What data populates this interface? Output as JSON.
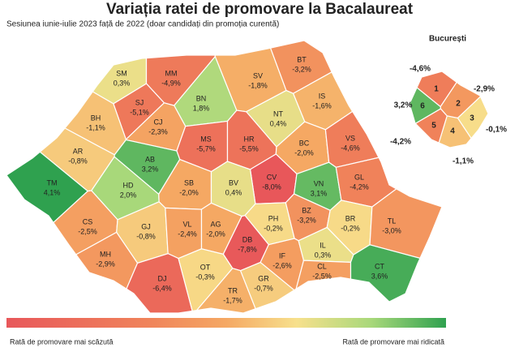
{
  "header": {
    "title": "Variația ratei de promovare la Bacalaureat",
    "subtitle": "Sesiunea iunie-iulie 2023 față de 2022 (doar candidați din promoția curentă)"
  },
  "counties": [
    {
      "code": "SM",
      "value": 0.3,
      "value_label": "0,3%"
    },
    {
      "code": "MM",
      "value": -4.9,
      "value_label": "-4,9%"
    },
    {
      "code": "SV",
      "value": -1.8,
      "value_label": "-1,8%"
    },
    {
      "code": "BT",
      "value": -3.2,
      "value_label": "-3,2%"
    },
    {
      "code": "SJ",
      "value": -5.1,
      "value_label": "-5,1%"
    },
    {
      "code": "BN",
      "value": 1.8,
      "value_label": "1,8%"
    },
    {
      "code": "IS",
      "value": -1.6,
      "value_label": "-1,6%"
    },
    {
      "code": "BH",
      "value": -1.1,
      "value_label": "-1,1%"
    },
    {
      "code": "CJ",
      "value": -2.3,
      "value_label": "-2,3%"
    },
    {
      "code": "NT",
      "value": 0.4,
      "value_label": "0,4%"
    },
    {
      "code": "MS",
      "value": -5.7,
      "value_label": "-5,7%"
    },
    {
      "code": "HR",
      "value": -5.5,
      "value_label": "-5,5%"
    },
    {
      "code": "BC",
      "value": -2.0,
      "value_label": "-2,0%"
    },
    {
      "code": "VS",
      "value": -4.6,
      "value_label": "-4,6%"
    },
    {
      "code": "AR",
      "value": -0.8,
      "value_label": "-0,8%"
    },
    {
      "code": "AB",
      "value": 3.2,
      "value_label": "3,2%"
    },
    {
      "code": "CV",
      "value": -8.0,
      "value_label": "-8,0%"
    },
    {
      "code": "VN",
      "value": 3.1,
      "value_label": "3,1%"
    },
    {
      "code": "GL",
      "value": -4.2,
      "value_label": "-4,2%"
    },
    {
      "code": "TM",
      "value": 4.1,
      "value_label": "4,1%"
    },
    {
      "code": "HD",
      "value": 2.0,
      "value_label": "2,0%"
    },
    {
      "code": "SB",
      "value": -2.0,
      "value_label": "-2,0%"
    },
    {
      "code": "BV",
      "value": 0.4,
      "value_label": "0,4%"
    },
    {
      "code": "CS",
      "value": -2.5,
      "value_label": "-2,5%"
    },
    {
      "code": "GJ",
      "value": -0.8,
      "value_label": "-0,8%"
    },
    {
      "code": "VL",
      "value": -2.4,
      "value_label": "-2,4%"
    },
    {
      "code": "AG",
      "value": -2.0,
      "value_label": "-2,0%"
    },
    {
      "code": "PH",
      "value": -0.2,
      "value_label": "-0,2%"
    },
    {
      "code": "BZ",
      "value": -3.2,
      "value_label": "-3,2%"
    },
    {
      "code": "BR",
      "value": -0.2,
      "value_label": "-0,2%"
    },
    {
      "code": "TL",
      "value": -3.0,
      "value_label": "-3,0%"
    },
    {
      "code": "DB",
      "value": -7.8,
      "value_label": "-7,8%"
    },
    {
      "code": "MH",
      "value": -2.9,
      "value_label": "-2,9%"
    },
    {
      "code": "DJ",
      "value": -6.4,
      "value_label": "-6,4%"
    },
    {
      "code": "OT",
      "value": -0.3,
      "value_label": "-0,3%"
    },
    {
      "code": "TR",
      "value": -1.7,
      "value_label": "-1,7%"
    },
    {
      "code": "GR",
      "value": -0.7,
      "value_label": "-0,7%"
    },
    {
      "code": "IF",
      "value": -2.6,
      "value_label": "-2,6%"
    },
    {
      "code": "IL",
      "value": 0.3,
      "value_label": "0,3%"
    },
    {
      "code": "CL",
      "value": -2.5,
      "value_label": "-2,5%"
    },
    {
      "code": "CT",
      "value": 3.6,
      "value_label": "3,6%"
    }
  ],
  "bucharest": {
    "title": "București",
    "sectors": [
      {
        "label": "1",
        "value": -4.6,
        "value_label": "-4,6%"
      },
      {
        "label": "2",
        "value": -2.9,
        "value_label": "-2,9%"
      },
      {
        "label": "3",
        "value": -0.1,
        "value_label": "-0,1%"
      },
      {
        "label": "4",
        "value": -1.1,
        "value_label": "-1,1%"
      },
      {
        "label": "5",
        "value": -4.2,
        "value_label": "-4,2%"
      },
      {
        "label": "6",
        "value": 3.2,
        "value_label": "3,2%"
      }
    ]
  },
  "legend": {
    "low": "Rată de promovare mai scăzută",
    "high": "Rată de promovare mai ridicată"
  }
}
